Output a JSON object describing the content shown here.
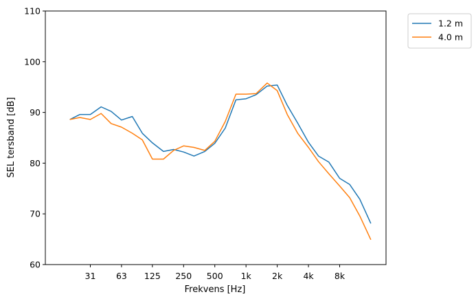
{
  "chart_data": {
    "type": "line",
    "title": "",
    "xlabel": "Frekvens [Hz]",
    "ylabel": "SEL tersband [dB]",
    "ylim": [
      60,
      110
    ],
    "yticks": [
      60,
      70,
      80,
      90,
      100,
      110
    ],
    "xscale": "log",
    "xticks": [
      {
        "label": "31",
        "value": 31.5
      },
      {
        "label": "63",
        "value": 63
      },
      {
        "label": "125",
        "value": 125
      },
      {
        "label": "250",
        "value": 250
      },
      {
        "label": "500",
        "value": 500
      },
      {
        "label": "1k",
        "value": 1000
      },
      {
        "label": "2k",
        "value": 2000
      },
      {
        "label": "4k",
        "value": 4000
      },
      {
        "label": "8k",
        "value": 8000
      }
    ],
    "xlim": [
      11.6,
      22400
    ],
    "grid": false,
    "legend_position": "outside-top-right",
    "x": [
      20,
      25,
      31.5,
      40,
      50,
      63,
      80,
      100,
      125,
      160,
      200,
      250,
      315,
      400,
      500,
      630,
      800,
      1000,
      1250,
      1600,
      2000,
      2500,
      3150,
      4000,
      5000,
      6300,
      8000,
      10000,
      12500,
      16000
    ],
    "series": [
      {
        "name": "1.2 m",
        "color": "#1f77b4",
        "values": [
          88.6,
          89.6,
          89.6,
          91.1,
          90.2,
          88.5,
          89.2,
          85.9,
          84.0,
          82.3,
          82.7,
          82.2,
          81.4,
          82.3,
          83.9,
          86.9,
          92.5,
          92.7,
          93.5,
          95.2,
          95.4,
          91.4,
          87.9,
          84.1,
          81.4,
          80.2,
          77.0,
          75.8,
          72.9,
          68.1
        ]
      },
      {
        "name": "4.0 m",
        "color": "#ff7f0e",
        "values": [
          88.6,
          89.0,
          88.6,
          89.8,
          87.8,
          87.1,
          85.9,
          84.6,
          80.8,
          80.8,
          82.5,
          83.4,
          83.1,
          82.5,
          84.3,
          88.2,
          93.6,
          93.6,
          93.7,
          95.8,
          94.3,
          89.6,
          85.9,
          83.1,
          80.3,
          77.9,
          75.5,
          73.2,
          69.6,
          64.9
        ]
      }
    ]
  }
}
